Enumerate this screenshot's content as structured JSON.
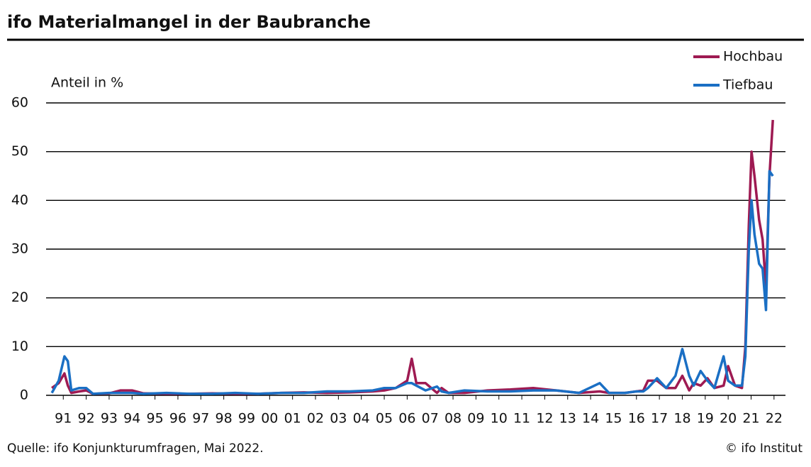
{
  "chart_data": {
    "type": "line",
    "title": "ifo Materialmangel in der Baubranche",
    "y_label": "Anteil in %",
    "source": "Quelle: ifo Konjunkturumfragen, Mai 2022.",
    "copyright": "© ifo Institut",
    "x": [
      1991.0,
      1991.3,
      1991.55,
      1991.7,
      1991.85,
      1992.2,
      1992.5,
      1992.8,
      1993.5,
      1994.0,
      1994.5,
      1995.0,
      1996.0,
      1997.0,
      1998.0,
      1999.0,
      2000.0,
      2001.0,
      2002.0,
      2003.0,
      2004.0,
      2005.0,
      2005.5,
      2006.0,
      2006.5,
      2006.7,
      2006.9,
      2007.3,
      2007.8,
      2008.0,
      2008.3,
      2009.0,
      2010.0,
      2011.0,
      2012.0,
      2013.0,
      2014.0,
      2014.9,
      2015.3,
      2016.0,
      2016.5,
      2016.8,
      2017.0,
      2017.4,
      2017.8,
      2018.2,
      2018.5,
      2018.8,
      2019.0,
      2019.3,
      2019.6,
      2019.9,
      2020.3,
      2020.5,
      2020.8,
      2021.1,
      2021.25,
      2021.4,
      2021.52,
      2021.65,
      2021.85,
      2022.0,
      2022.15,
      2022.3,
      2022.45
    ],
    "series": [
      {
        "name": "Hochbau",
        "color": "#9e1a52",
        "values": [
          1.5,
          2.5,
          4.5,
          2,
          0.5,
          0.8,
          1,
          0.3,
          0.4,
          1,
          1,
          0.4,
          0.3,
          0.3,
          0.4,
          0.3,
          0.3,
          0.5,
          0.6,
          0.5,
          0.6,
          0.8,
          1,
          1.5,
          3,
          7.5,
          2.5,
          2.5,
          0.5,
          1.5,
          0.5,
          0.5,
          1,
          1.2,
          1.5,
          1,
          0.5,
          0.8,
          0.5,
          0.5,
          0.8,
          1,
          3,
          3,
          1.5,
          1.5,
          4,
          1,
          2.5,
          2,
          3.5,
          1.5,
          2,
          6,
          2,
          1.5,
          10,
          35,
          50,
          45,
          36,
          32,
          22,
          45,
          56.5
        ]
      },
      {
        "name": "Tiefbau",
        "color": "#1a6fc4",
        "values": [
          0.5,
          3,
          8,
          7,
          1,
          1.5,
          1.5,
          0.3,
          0.5,
          0.5,
          0.5,
          0.3,
          0.5,
          0.3,
          0.3,
          0.5,
          0.3,
          0.5,
          0.5,
          0.8,
          0.8,
          1,
          1.5,
          1.5,
          2.5,
          2.5,
          2,
          1,
          1.8,
          0.8,
          0.5,
          1,
          0.8,
          0.8,
          1,
          1,
          0.5,
          2.5,
          0.5,
          0.5,
          0.8,
          0.8,
          1.5,
          3.5,
          1.5,
          4,
          9.5,
          4,
          2,
          5,
          3,
          1.5,
          8,
          3,
          2,
          2,
          8,
          30,
          40,
          33,
          27,
          26,
          17.5,
          46,
          45
        ]
      }
    ],
    "xlim": [
      1990.75,
      2023.0
    ],
    "xticks": [
      {
        "value": 1991.5,
        "label": "91"
      },
      {
        "value": 1992.5,
        "label": "92"
      },
      {
        "value": 1993.5,
        "label": "93"
      },
      {
        "value": 1994.5,
        "label": "94"
      },
      {
        "value": 1995.5,
        "label": "95"
      },
      {
        "value": 1996.5,
        "label": "96"
      },
      {
        "value": 1997.5,
        "label": "97"
      },
      {
        "value": 1998.5,
        "label": "98"
      },
      {
        "value": 1999.5,
        "label": "99"
      },
      {
        "value": 2000.5,
        "label": "00"
      },
      {
        "value": 2001.5,
        "label": "01"
      },
      {
        "value": 2002.5,
        "label": "02"
      },
      {
        "value": 2003.5,
        "label": "03"
      },
      {
        "value": 2004.5,
        "label": "04"
      },
      {
        "value": 2005.5,
        "label": "05"
      },
      {
        "value": 2006.5,
        "label": "06"
      },
      {
        "value": 2007.5,
        "label": "07"
      },
      {
        "value": 2008.5,
        "label": "08"
      },
      {
        "value": 2009.5,
        "label": "09"
      },
      {
        "value": 2010.5,
        "label": "10"
      },
      {
        "value": 2011.5,
        "label": "11"
      },
      {
        "value": 2012.5,
        "label": "12"
      },
      {
        "value": 2013.5,
        "label": "13"
      },
      {
        "value": 2014.5,
        "label": "14"
      },
      {
        "value": 2015.5,
        "label": "15"
      },
      {
        "value": 2016.5,
        "label": "16"
      },
      {
        "value": 2017.5,
        "label": "17"
      },
      {
        "value": 2018.5,
        "label": "18"
      },
      {
        "value": 2019.5,
        "label": "19"
      },
      {
        "value": 2020.5,
        "label": "20"
      },
      {
        "value": 2021.5,
        "label": "21"
      },
      {
        "value": 2022.5,
        "label": "22"
      }
    ],
    "ylim": [
      0,
      60
    ],
    "yticks": [
      0,
      10,
      20,
      30,
      40,
      50,
      60
    ],
    "grid": true,
    "legend": "top-right"
  }
}
